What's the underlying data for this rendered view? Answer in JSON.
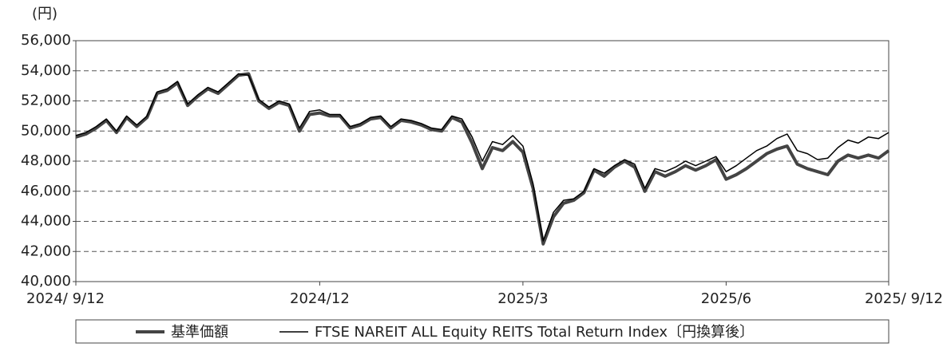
{
  "chart_data": {
    "type": "line",
    "y_label": "(円)",
    "categories": [
      "2024/ 9/12",
      null,
      null,
      null,
      null,
      null,
      null,
      null,
      null,
      null,
      null,
      null,
      null,
      null,
      null,
      null,
      null,
      null,
      null,
      null,
      null,
      null,
      null,
      null,
      "2024/12",
      null,
      null,
      null,
      null,
      null,
      null,
      null,
      null,
      null,
      null,
      null,
      null,
      null,
      null,
      null,
      null,
      null,
      null,
      null,
      "2025/3",
      null,
      null,
      null,
      null,
      null,
      null,
      null,
      null,
      null,
      null,
      null,
      null,
      null,
      null,
      null,
      null,
      null,
      null,
      null,
      "2025/6",
      null,
      null,
      null,
      null,
      null,
      null,
      null,
      null,
      null,
      null,
      null,
      null,
      null,
      null,
      null,
      "2025/ 9/12"
    ],
    "series": [
      {
        "name": "基準価額",
        "color": "#444444",
        "width": 4,
        "values": [
          49600,
          49800,
          50200,
          50700,
          49900,
          50900,
          50300,
          50900,
          52500,
          52700,
          53200,
          51700,
          52300,
          52800,
          52500,
          53100,
          53700,
          53800,
          52000,
          51500,
          51900,
          51700,
          50000,
          51100,
          51200,
          51000,
          51000,
          50200,
          50400,
          50800,
          50900,
          50200,
          50700,
          50600,
          50400,
          50100,
          50000,
          50900,
          50600,
          49200,
          47500,
          48900,
          48700,
          49300,
          48600,
          46200,
          42500,
          44300,
          45200,
          45400,
          45900,
          47400,
          47000,
          47600,
          48000,
          47600,
          46000,
          47300,
          47000,
          47300,
          47700,
          47400,
          47700,
          48100,
          46800,
          47100,
          47500,
          48000,
          48500,
          48800,
          49000,
          47800,
          47500,
          47300,
          47100,
          48000,
          48400,
          48200,
          48400,
          48200,
          48700
        ]
      },
      {
        "name": "FTSE NAREIT ALL Equity REITS Total Return Index〔円換算後〕",
        "color": "#000000",
        "width": 1.5,
        "values": [
          49700,
          49900,
          50300,
          50800,
          50000,
          51000,
          50400,
          51000,
          52600,
          52800,
          53300,
          51800,
          52400,
          52900,
          52600,
          53200,
          53800,
          53700,
          52100,
          51600,
          52000,
          51800,
          50200,
          51300,
          51400,
          51100,
          51100,
          50300,
          50500,
          50900,
          51000,
          50300,
          50800,
          50700,
          50500,
          50200,
          50100,
          51000,
          50800,
          49600,
          48000,
          49300,
          49100,
          49700,
          49000,
          46500,
          42700,
          44600,
          45400,
          45500,
          46000,
          47500,
          47200,
          47700,
          48100,
          47800,
          46200,
          47500,
          47300,
          47600,
          48000,
          47700,
          48000,
          48300,
          47300,
          47700,
          48200,
          48700,
          49000,
          49500,
          49800,
          48700,
          48500,
          48100,
          48200,
          48900,
          49400,
          49200,
          49600,
          49500,
          49900
        ]
      }
    ],
    "ylim": [
      40000,
      56000
    ],
    "yticks": [
      {
        "value": 40000,
        "label": "40,000"
      },
      {
        "value": 42000,
        "label": "42,000"
      },
      {
        "value": 44000,
        "label": "44,000"
      },
      {
        "value": 46000,
        "label": "46,000"
      },
      {
        "value": 48000,
        "label": "48,000"
      },
      {
        "value": 50000,
        "label": "50,000"
      },
      {
        "value": 52000,
        "label": "52,000"
      },
      {
        "value": 54000,
        "label": "54,000"
      },
      {
        "value": 56000,
        "label": "56,000"
      }
    ],
    "grid": true
  }
}
